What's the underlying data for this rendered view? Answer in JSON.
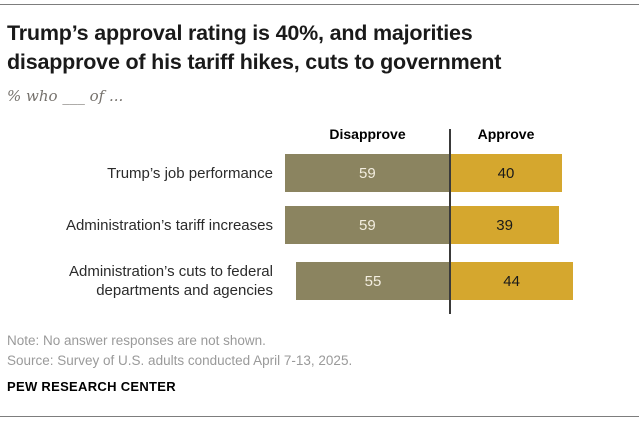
{
  "header": {
    "title_line1": "Trump’s approval rating is 40%, and majorities",
    "title_line2": "disapprove of his tariff hikes, cuts to government",
    "subtitle": "% who ___ of ..."
  },
  "chart_data": {
    "type": "bar",
    "orientation": "horizontal-diverging",
    "title": "Trump’s approval rating is 40%, and majorities disapprove of his tariff hikes, cuts to government",
    "subtitle": "% who ___ of ...",
    "categories": [
      "Trump’s job performance",
      "Administration’s tariff increases",
      "Administration’s cuts to federal departments and agencies"
    ],
    "series": [
      {
        "name": "Disapprove",
        "values": [
          59,
          59,
          55
        ],
        "color": "#8b8460",
        "label_color": "#f2eddf"
      },
      {
        "name": "Approve",
        "values": [
          40,
          39,
          44
        ],
        "color": "#d5a72e",
        "label_color": "#1a1a1a"
      }
    ],
    "value_labels_shown": true,
    "axis": {
      "center_value": 0,
      "note": "bars diverge from shared center axis"
    },
    "legend_position": "column-headers-above-bars",
    "grid": false
  },
  "footer": {
    "note": "Note: No answer responses are not shown.",
    "source": "Source: Survey of U.S. adults conducted April 7-13, 2025.",
    "brand": "PEW RESEARCH CENTER"
  },
  "colors": {
    "disapprove_bar": "#8b8460",
    "approve_bar": "#d5a72e",
    "title_text": "#1a1a1a",
    "muted_text": "#9a9a9a",
    "rule": "#7d7d7d"
  }
}
